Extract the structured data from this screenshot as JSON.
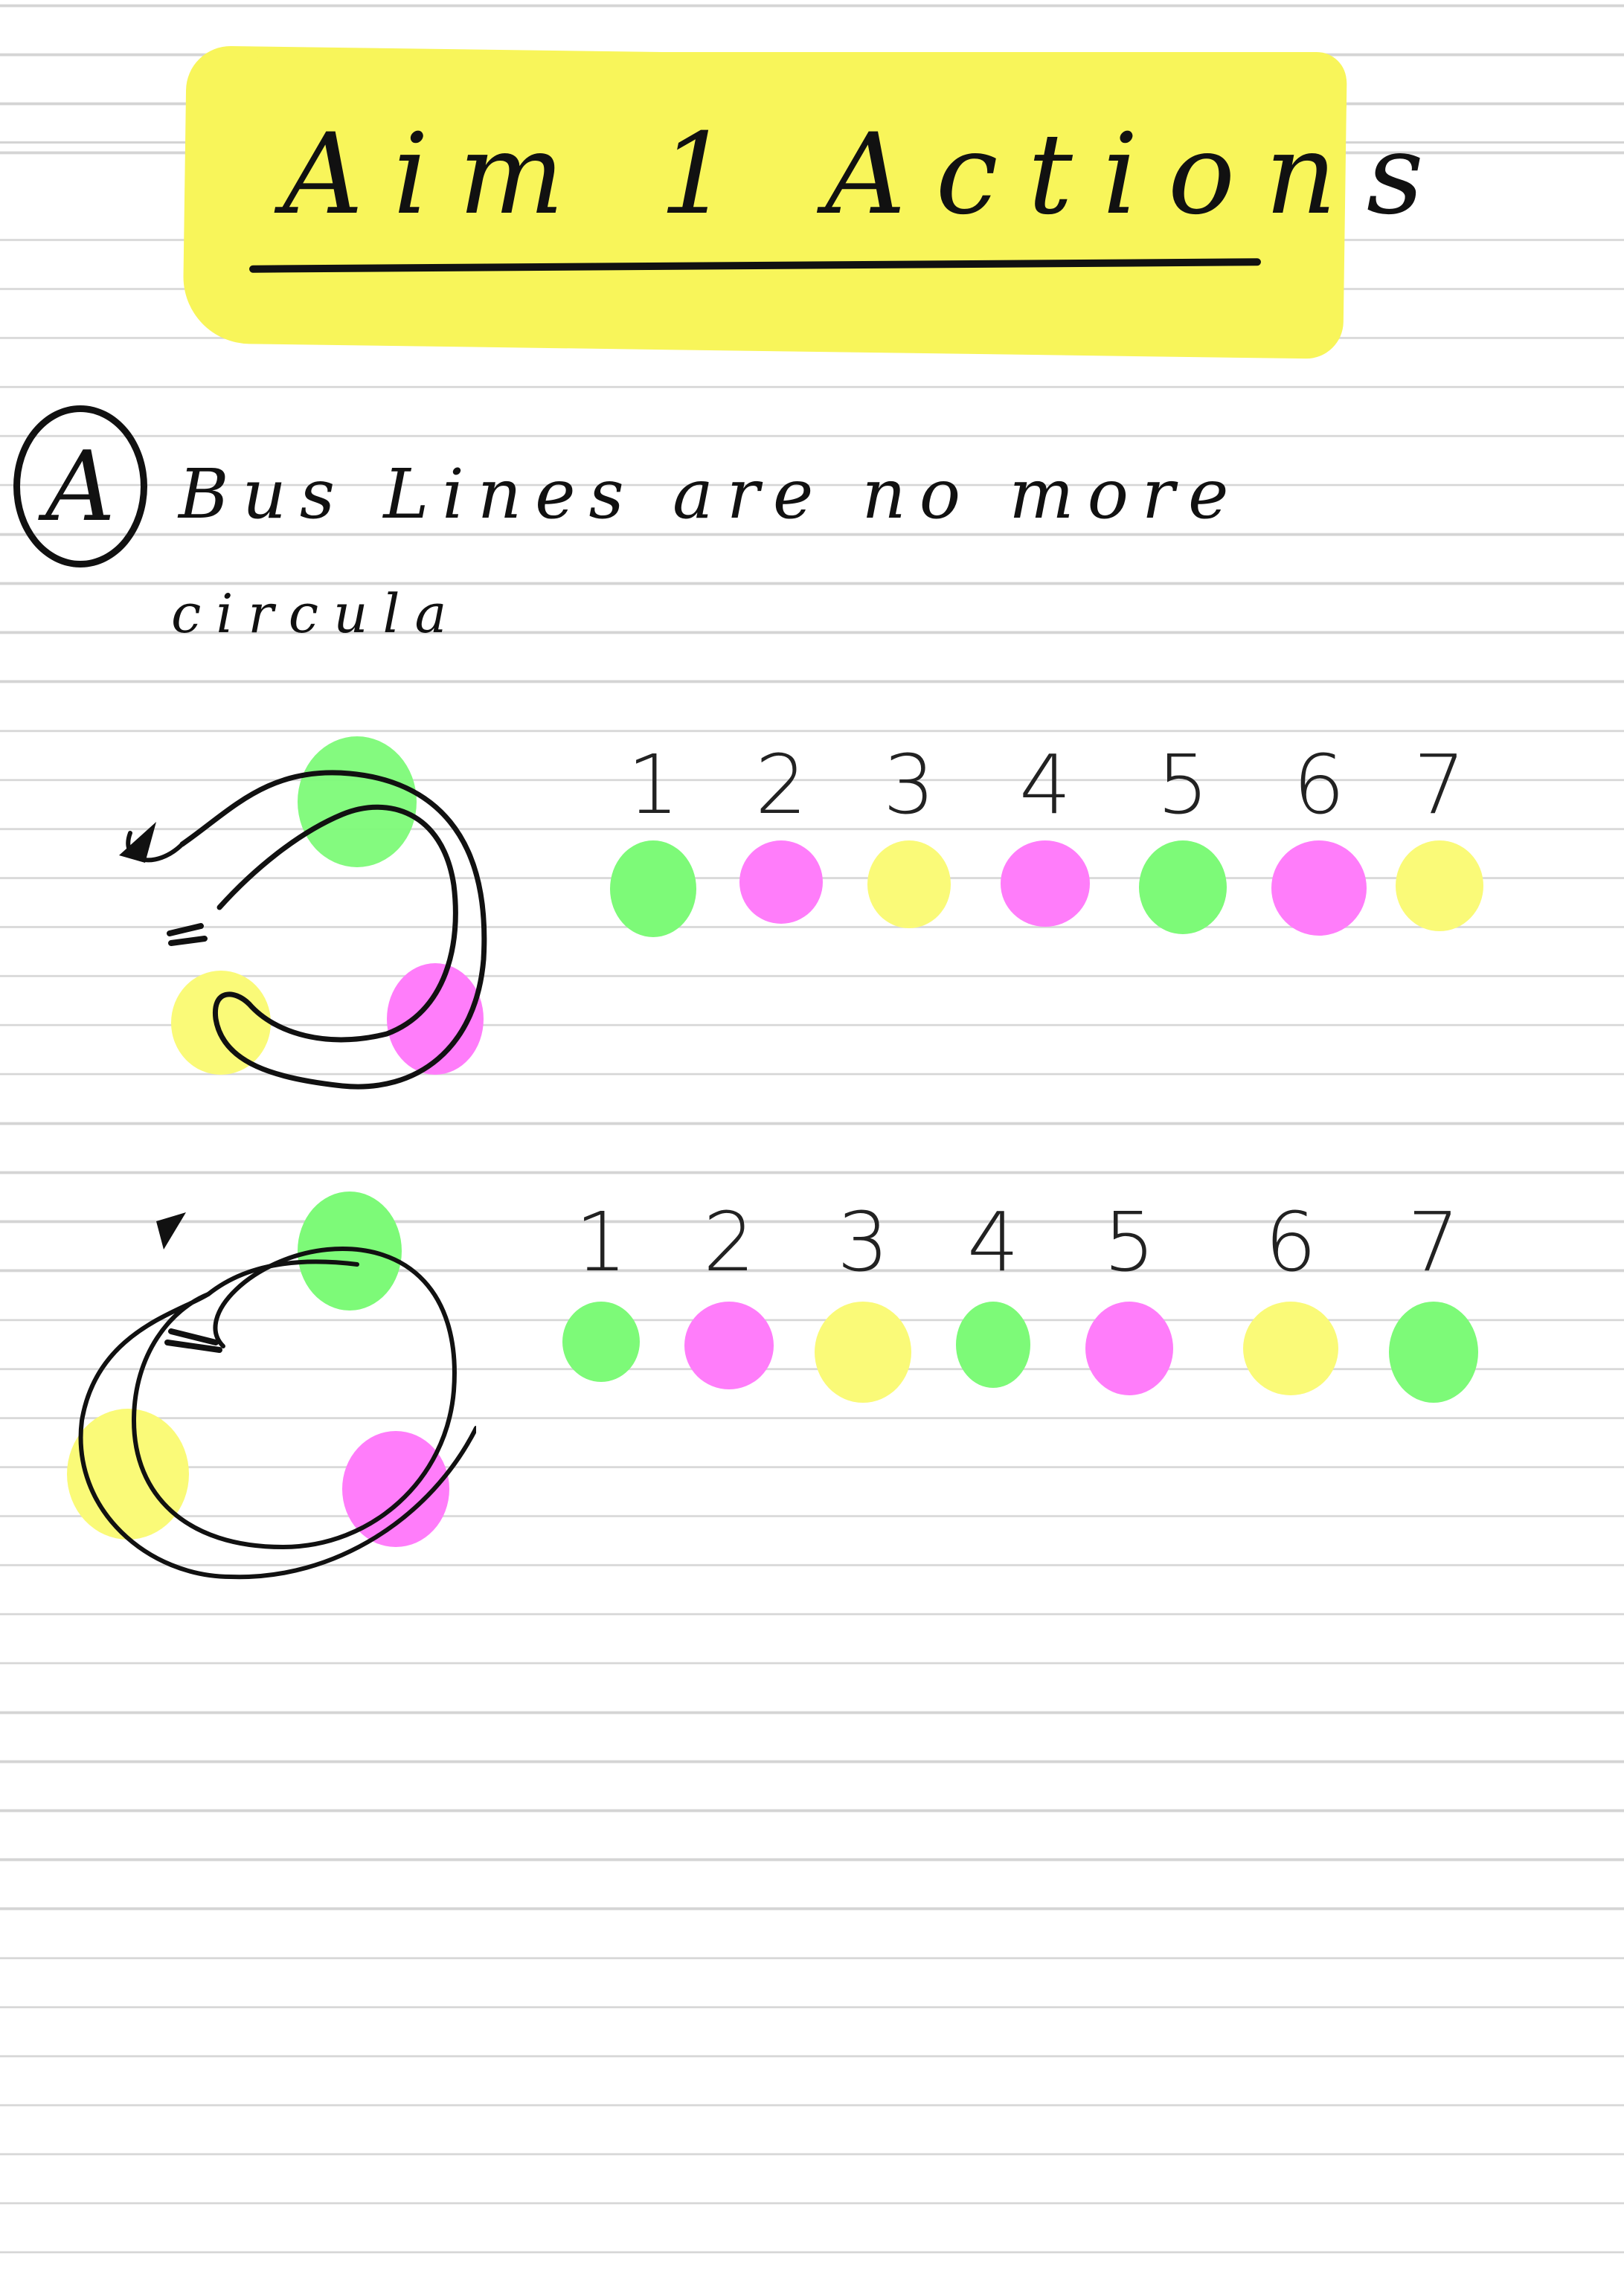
{
  "title": "Aim 1 Actions",
  "section": {
    "badge": "A",
    "heading_line1": "Bus Lines are no more",
    "heading_line2": "circula"
  },
  "colors": {
    "highlight": "#f8f55a",
    "green": "#7dfa78",
    "pink": "#ff7dfa",
    "yellow": "#fafa78",
    "ink": "#111111",
    "rule": "#d4d4d4"
  },
  "diagrams": [
    {
      "loop_stops": [
        "green",
        "pink",
        "yellow"
      ],
      "sequence": [
        {
          "label": "1",
          "color": "green"
        },
        {
          "label": "2",
          "color": "pink"
        },
        {
          "label": "3",
          "color": "yellow"
        },
        {
          "label": "4",
          "color": "pink"
        },
        {
          "label": "5",
          "color": "green"
        },
        {
          "label": "6",
          "color": "pink"
        },
        {
          "label": "7",
          "color": "yellow"
        }
      ]
    },
    {
      "loop_stops": [
        "green",
        "pink",
        "yellow"
      ],
      "sequence": [
        {
          "label": "1",
          "color": "green"
        },
        {
          "label": "2",
          "color": "pink"
        },
        {
          "label": "3",
          "color": "yellow"
        },
        {
          "label": "4",
          "color": "green"
        },
        {
          "label": "5",
          "color": "pink"
        },
        {
          "label": "6",
          "color": "yellow"
        },
        {
          "label": "7",
          "color": "green"
        }
      ]
    }
  ]
}
